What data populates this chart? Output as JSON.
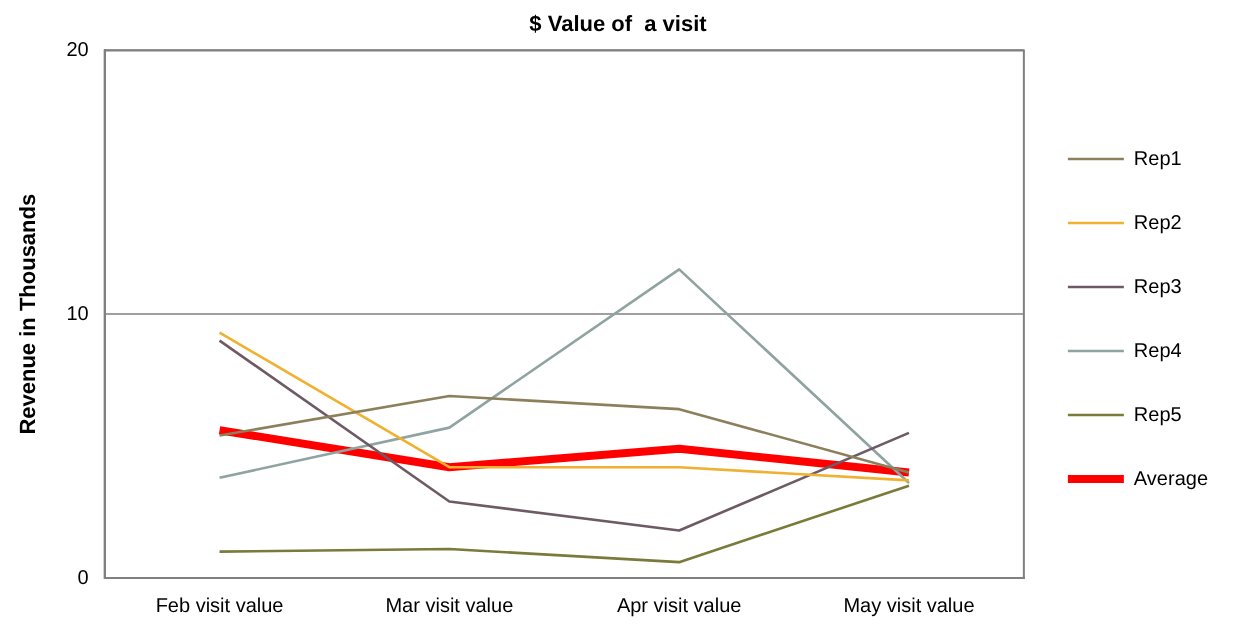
{
  "chart_data": {
    "type": "line",
    "title": "$ Value of  a visit",
    "ylabel": "Revenue in Thousands",
    "categories": [
      "Feb visit value",
      "Mar visit value",
      "Apr visit value",
      "May visit value"
    ],
    "series": [
      {
        "name": "Rep1",
        "color": "#8c7f5c",
        "values": [
          5.4,
          6.9,
          6.4,
          4.0
        ]
      },
      {
        "name": "Rep2",
        "color": "#f0b030",
        "values": [
          9.3,
          4.2,
          4.2,
          3.7
        ]
      },
      {
        "name": "Rep3",
        "color": "#6e5a64",
        "values": [
          9.0,
          2.9,
          1.8,
          5.5
        ]
      },
      {
        "name": "Rep4",
        "color": "#8fa3a0",
        "values": [
          3.8,
          5.7,
          11.7,
          3.6
        ]
      },
      {
        "name": "Rep5",
        "color": "#7a7a3a",
        "values": [
          1.0,
          1.1,
          0.6,
          3.5
        ]
      },
      {
        "name": "Average",
        "color": "#ff0000",
        "values": [
          5.6,
          4.2,
          4.9,
          4.0
        ]
      }
    ],
    "ylim": [
      0,
      20
    ],
    "yticks": [
      0,
      10,
      20
    ],
    "grid": "y",
    "legend": "right",
    "marker": "none"
  }
}
